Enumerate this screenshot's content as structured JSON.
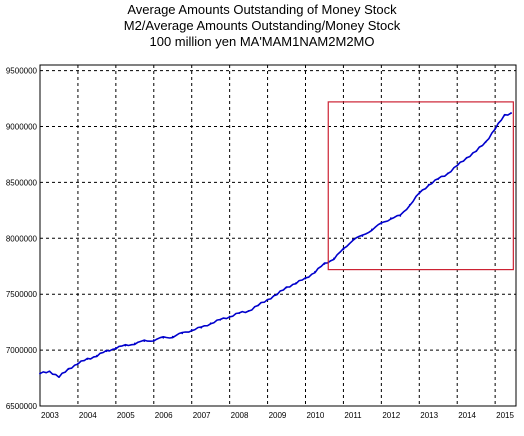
{
  "chart_data": {
    "type": "line",
    "title": "Average Amounts Outstanding of Money Stock",
    "subtitle": "M2/Average Amounts Outstanding/Money Stock",
    "ylabel_note": "100 million yen MA'MAM1NAM2M2MO",
    "yticks": [
      6500000,
      7000000,
      7500000,
      8000000,
      8500000,
      9000000,
      9500000
    ],
    "ytick_labels": [
      "6500000",
      "7000000",
      "7500000",
      "8000000",
      "8500000",
      "9000000",
      "9500000"
    ],
    "xticks": [
      "2003",
      "2004",
      "2005",
      "2006",
      "2007",
      "2008",
      "2009",
      "2010",
      "2011",
      "2012",
      "2013",
      "2014",
      "2015"
    ],
    "ylim": [
      6500000,
      9550000
    ],
    "xlim": [
      2003.0,
      2015.55
    ],
    "grid": true,
    "series_color": "#0000cc",
    "highlight_color": "#cc2233",
    "highlight_box": {
      "x0": 2010.6,
      "x1": 2015.48,
      "y0": 7720000,
      "y1": 9220000
    },
    "series": [
      {
        "x": [
          2003.0,
          2003.25,
          2003.5,
          2003.75,
          2004.0,
          2004.25,
          2004.5,
          2004.75,
          2005.0,
          2005.25,
          2005.5,
          2005.75,
          2006.0,
          2006.25,
          2006.5,
          2006.75,
          2007.0,
          2007.25,
          2007.5,
          2007.75,
          2008.0,
          2008.25,
          2008.5,
          2008.75,
          2009.0,
          2009.25,
          2009.5,
          2009.75,
          2010.0,
          2010.25,
          2010.5,
          2010.75,
          2011.0,
          2011.25,
          2011.5,
          2011.75,
          2012.0,
          2012.25,
          2012.5,
          2012.75,
          2013.0,
          2013.25,
          2013.5,
          2013.75,
          2014.0,
          2014.25,
          2014.5,
          2014.75,
          2015.0,
          2015.25,
          2015.42
        ],
        "values": [
          6790000,
          6810000,
          6760000,
          6830000,
          6880000,
          6920000,
          6950000,
          6990000,
          7020000,
          7040000,
          7060000,
          7080000,
          7090000,
          7110000,
          7120000,
          7150000,
          7180000,
          7200000,
          7240000,
          7270000,
          7300000,
          7330000,
          7350000,
          7400000,
          7450000,
          7500000,
          7560000,
          7600000,
          7640000,
          7700000,
          7770000,
          7820000,
          7900000,
          7990000,
          8020000,
          8080000,
          8130000,
          8180000,
          8200000,
          8300000,
          8400000,
          8480000,
          8530000,
          8580000,
          8650000,
          8720000,
          8780000,
          8860000,
          8980000,
          9100000,
          9120000
        ]
      }
    ]
  }
}
